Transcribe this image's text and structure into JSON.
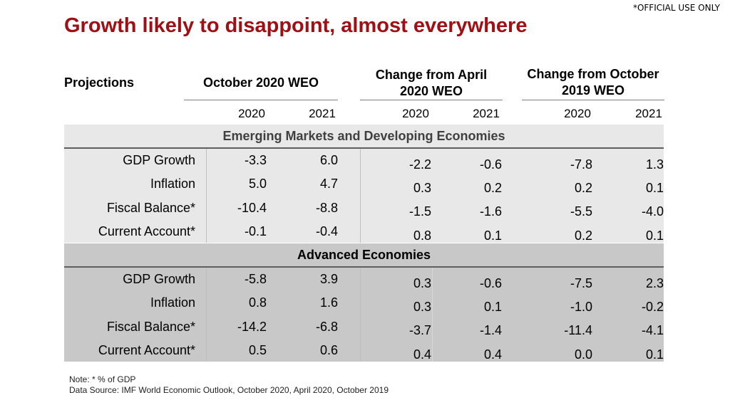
{
  "marker": "*OFFICIAL USE ONLY",
  "title": "Growth likely to disappoint, almost everywhere",
  "headers": {
    "projections": "Projections",
    "weo_oct2020": "October 2020 WEO",
    "chg_april_l1": "Change from April",
    "chg_april_l2": "2020 WEO",
    "chg_oct_l1": "Change from October",
    "chg_oct_l2": "2019 WEO"
  },
  "years": [
    "2020",
    "2021",
    "2020",
    "2021",
    "2020",
    "2021"
  ],
  "sections": [
    {
      "name": "Emerging Markets and Developing Economies",
      "rows": [
        {
          "label": "GDP Growth",
          "weo": [
            "-3.3",
            "6.0"
          ],
          "april": [
            "-2.2",
            "-0.6"
          ],
          "october": [
            "-7.8",
            "1.3"
          ]
        },
        {
          "label": "Inflation",
          "weo": [
            "5.0",
            "4.7"
          ],
          "april": [
            "0.3",
            "0.2"
          ],
          "october": [
            "0.2",
            "0.1"
          ]
        },
        {
          "label": "Fiscal Balance*",
          "weo": [
            "-10.4",
            "-8.8"
          ],
          "april": [
            "-1.5",
            "-1.6"
          ],
          "october": [
            "-5.5",
            "-4.0"
          ]
        },
        {
          "label": "Current Account*",
          "weo": [
            "-0.1",
            "-0.4"
          ],
          "april": [
            "0.8",
            "0.1"
          ],
          "october": [
            "0.2",
            "0.1"
          ]
        }
      ]
    },
    {
      "name": "Advanced Economies",
      "rows": [
        {
          "label": "GDP Growth",
          "weo": [
            "-5.8",
            "3.9"
          ],
          "april": [
            "0.3",
            "-0.6"
          ],
          "october": [
            "-7.5",
            "2.3"
          ]
        },
        {
          "label": "Inflation",
          "weo": [
            "0.8",
            "1.6"
          ],
          "april": [
            "0.3",
            "0.1"
          ],
          "october": [
            "-1.0",
            "-0.2"
          ]
        },
        {
          "label": "Fiscal Balance*",
          "weo": [
            "-14.2",
            "-6.8"
          ],
          "april": [
            "-3.7",
            "-1.4"
          ],
          "october": [
            "-11.4",
            "-4.1"
          ]
        },
        {
          "label": "Current Account*",
          "weo": [
            "0.5",
            "0.6"
          ],
          "april": [
            "0.4",
            "0.4"
          ],
          "october": [
            "0.0",
            "0.1"
          ]
        }
      ]
    }
  ],
  "notes": {
    "note": "Note: * % of GDP",
    "source": "Data Source: IMF World Economic Outlook, October 2020, April 2020, October 2019"
  }
}
